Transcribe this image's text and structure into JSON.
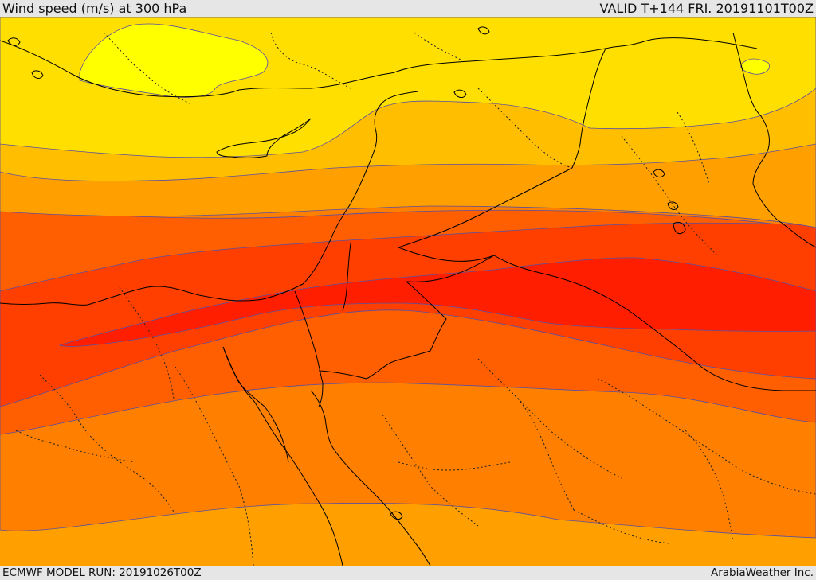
{
  "header": {
    "title": "Wind speed (m/s) at 300 hPa",
    "valid_time": "VALID T+144 FRI. 20191101T00Z"
  },
  "footer": {
    "model_run": "ECMWF MODEL RUN: 20191026T00Z",
    "credit": "ArabiaWeather Inc."
  },
  "map": {
    "region": "Eastern Mediterranean / Levant",
    "field": "wind speed",
    "units": "m/s",
    "pressure_level_hpa": 300,
    "colors": {
      "band_1_lowest": "#ffff00",
      "band_2": "#ffdf00",
      "band_3": "#ffbf00",
      "band_4": "#ff9f00",
      "band_5": "#ff7f00",
      "band_6": "#ff5f00",
      "band_7": "#ff3f00",
      "band_8_highest": "#ff1f00",
      "contour_line": "#5a4fa0",
      "coastline": "#000000",
      "border_dotted": "#222222"
    }
  }
}
